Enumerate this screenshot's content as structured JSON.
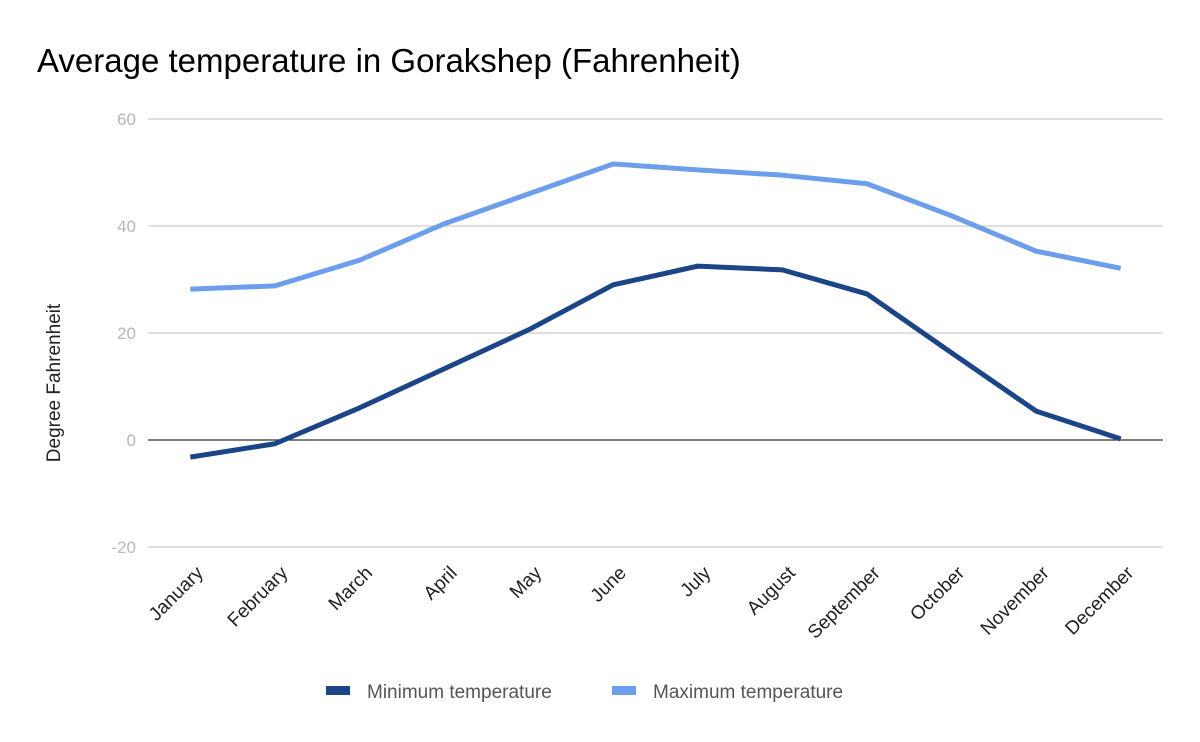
{
  "chart_data": {
    "type": "line",
    "title": "Average temperature in Gorakshep (Fahrenheit)",
    "xlabel": "",
    "ylabel": "Degree Fahrenheit",
    "ylim": [
      -20,
      60
    ],
    "yticks": [
      -20,
      0,
      20,
      40,
      60
    ],
    "grid": true,
    "legend_position": "bottom",
    "categories": [
      "January",
      "February",
      "March",
      "April",
      "May",
      "June",
      "July",
      "August",
      "September",
      "October",
      "November",
      "December"
    ],
    "series": [
      {
        "name": "Minimum temperature",
        "color": "#1c4587",
        "values": [
          -3.2,
          -0.7,
          6.0,
          13.3,
          20.6,
          29.0,
          32.5,
          31.8,
          27.3,
          16.3,
          5.4,
          0.2
        ]
      },
      {
        "name": "Maximum temperature",
        "color": "#6d9eeb",
        "values": [
          28.2,
          28.8,
          33.6,
          40.4,
          46.0,
          51.6,
          50.5,
          49.5,
          47.9,
          41.9,
          35.3,
          32.1
        ]
      }
    ]
  }
}
